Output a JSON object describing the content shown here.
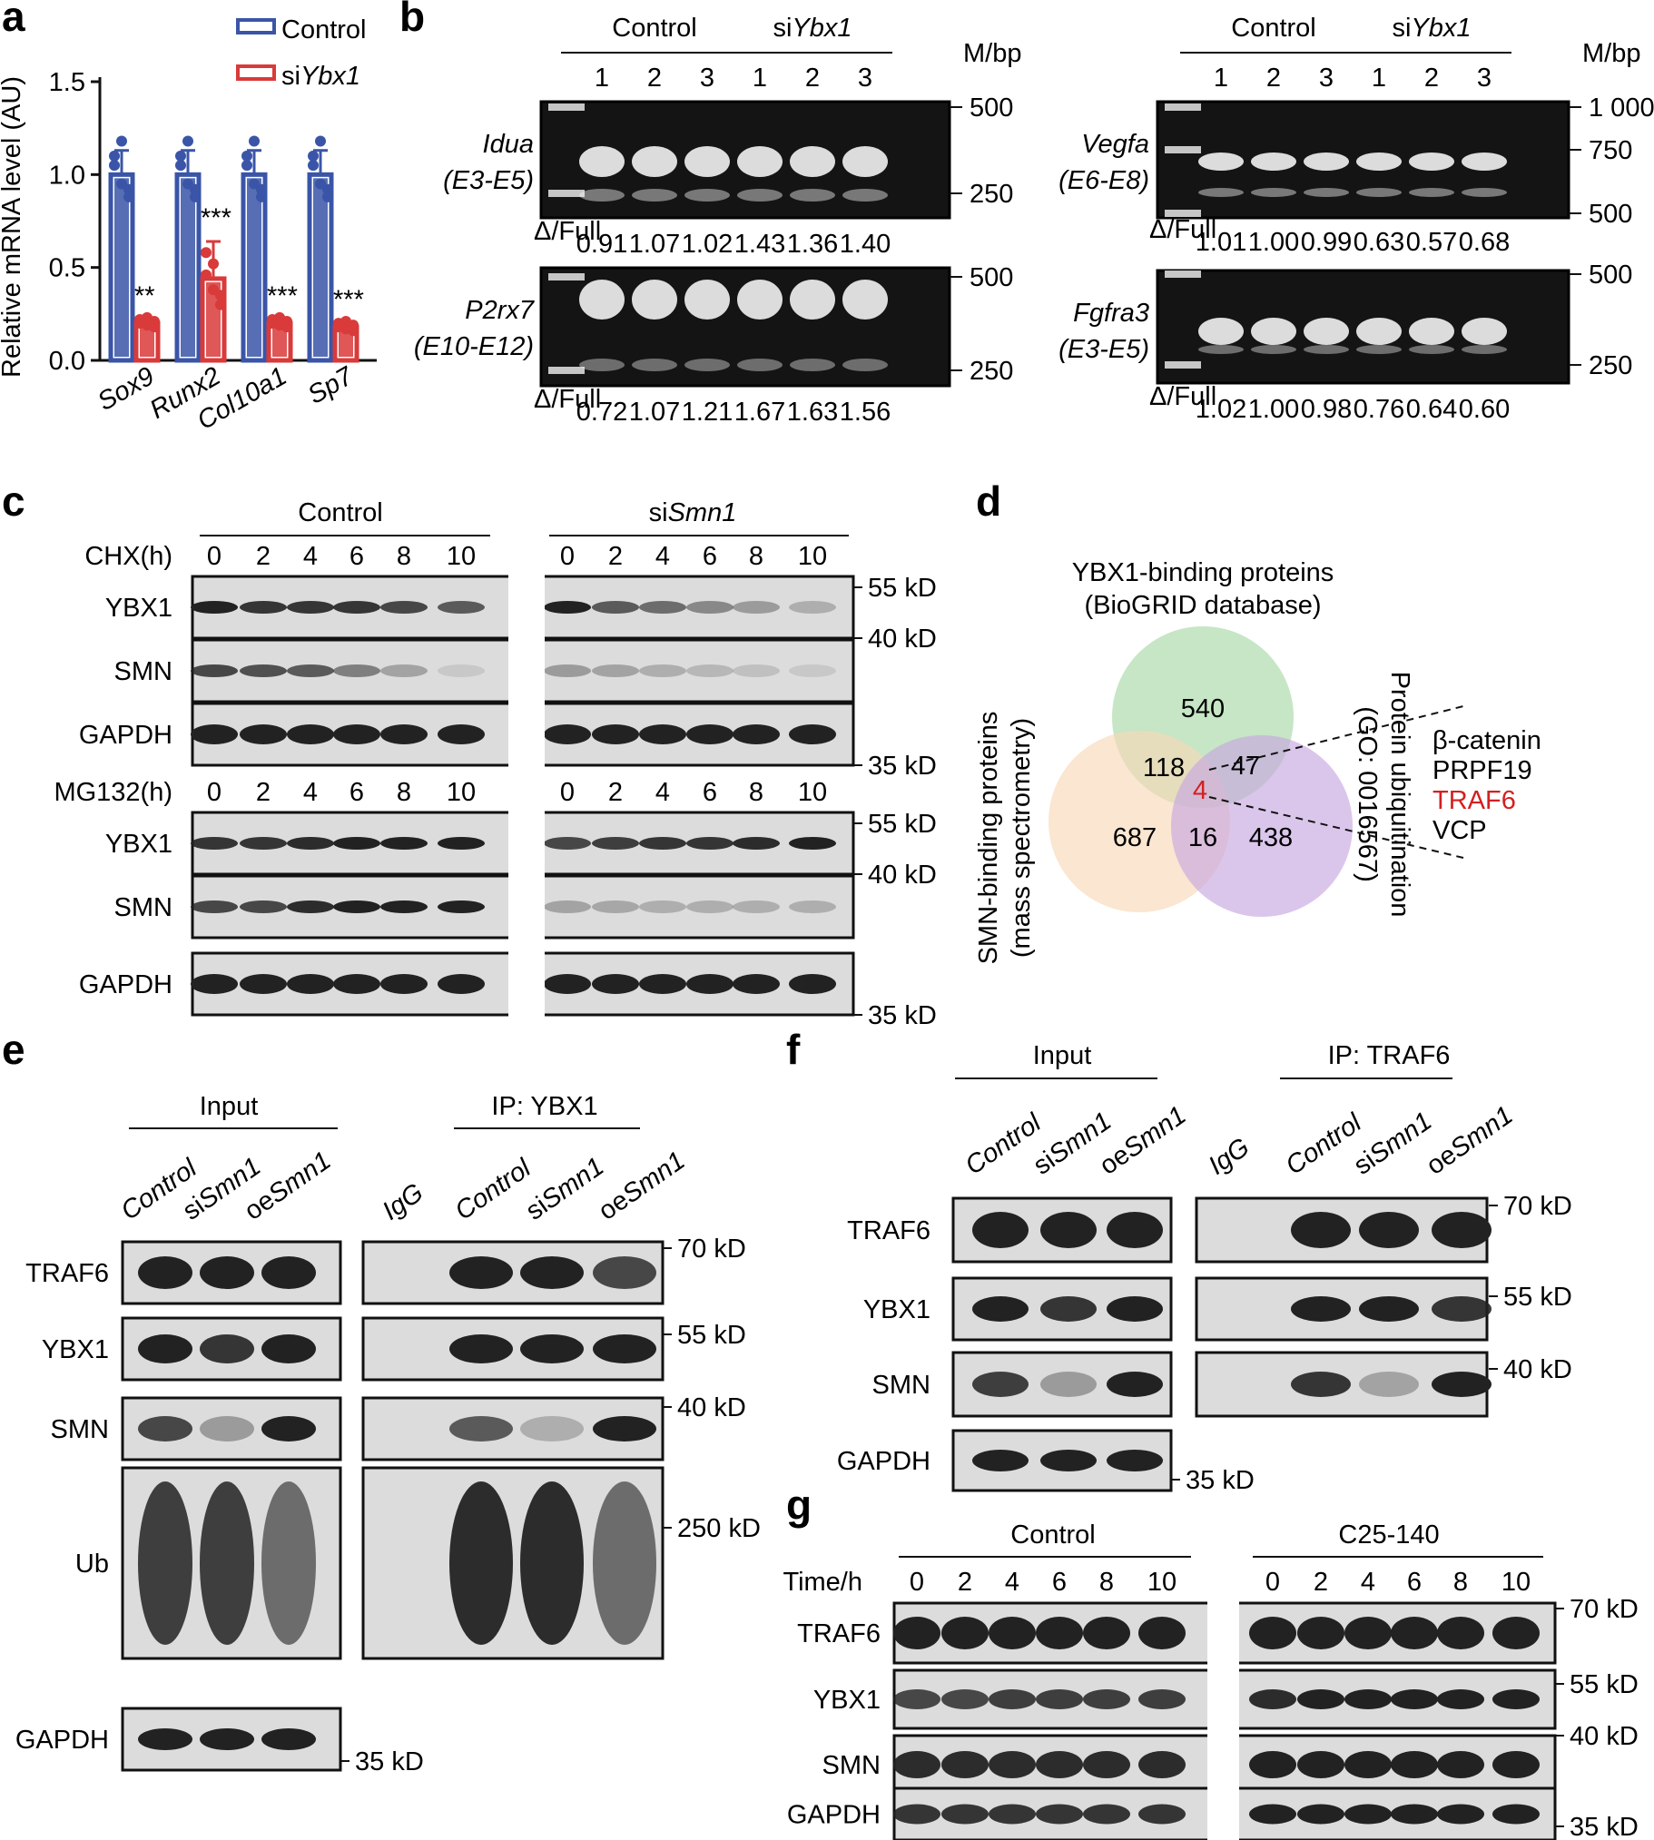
{
  "panels": {
    "a": "a",
    "b": "b",
    "c": "c",
    "d": "d",
    "e": "e",
    "f": "f",
    "g": "g"
  },
  "colors": {
    "control": "#3a55a8",
    "si": "#d93a3a",
    "band": "#222222",
    "gel_band": "#f2f2f2",
    "venn_green": "#a8d8a8",
    "venn_orange": "#f8d8b8",
    "venn_purple": "#c8a8e0",
    "highlight": "#d32020"
  },
  "panel_a": {
    "legend": {
      "control": "Control",
      "si_prefix": "si",
      "si_gene": "Ybx1"
    },
    "ylabel": "Relative mRNA level (AU)",
    "yticks": [
      "0.0",
      "0.5",
      "1.0",
      "1.5"
    ],
    "significance": [
      "**",
      "***",
      "***",
      "***"
    ],
    "chart_data": {
      "type": "bar",
      "categories": [
        "Sox9",
        "Runx2",
        "Col10a1",
        "Sp7"
      ],
      "series": [
        {
          "name": "Control",
          "values": [
            1.0,
            1.0,
            1.0,
            1.0
          ]
        },
        {
          "name": "siYbx1",
          "values": [
            0.2,
            0.44,
            0.2,
            0.18
          ]
        }
      ],
      "ylabel": "Relative mRNA level (AU)",
      "ylim": [
        0,
        1.5
      ]
    }
  },
  "panel_b": {
    "groups": {
      "control": "Control",
      "si_prefix": "si",
      "si_gene": "Ybx1"
    },
    "lanes": [
      "1",
      "2",
      "3",
      "1",
      "2",
      "3"
    ],
    "mbp": "M/bp",
    "ratio_label": "Δ/Full",
    "gels": [
      {
        "gene": "Idua",
        "exon": "(E3-E5)",
        "markers": [
          "500",
          "250"
        ],
        "ratios": [
          "0.91",
          "1.07",
          "1.02",
          "1.43",
          "1.36",
          "1.40"
        ]
      },
      {
        "gene": "P2rx7",
        "exon": "(E10-E12)",
        "markers": [
          "500",
          "250"
        ],
        "ratios": [
          "0.72",
          "1.07",
          "1.21",
          "1.67",
          "1.63",
          "1.56"
        ]
      },
      {
        "gene": "Vegfa",
        "exon": "(E6-E8)",
        "markers": [
          "1 000",
          "750",
          "500"
        ],
        "ratios": [
          "1.01",
          "1.00",
          "0.99",
          "0.63",
          "0.57",
          "0.68"
        ]
      },
      {
        "gene": "Fgfra3",
        "exon": "(E3-E5)",
        "markers": [
          "500",
          "250"
        ],
        "ratios": [
          "1.02",
          "1.00",
          "0.98",
          "0.76",
          "0.64",
          "0.60"
        ]
      }
    ]
  },
  "panel_c": {
    "groups": {
      "control": "Control",
      "si_prefix": "si",
      "si_gene": "Smn1"
    },
    "chx_label": "CHX(h)",
    "mg_label": "MG132(h)",
    "times": [
      "0",
      "2",
      "4",
      "6",
      "8",
      "10",
      "0",
      "2",
      "4",
      "6",
      "8",
      "10"
    ],
    "rows": [
      "YBX1",
      "SMN",
      "GAPDH"
    ],
    "mw": [
      "55 kD",
      "40 kD",
      "35 kD"
    ]
  },
  "panel_d": {
    "top_title_1": "YBX1-binding proteins",
    "top_title_2": "(BioGRID database)",
    "left_title_1": "SMN-binding proteins",
    "left_title_2": "(mass spectrometry)",
    "right_title_1": "Protein ubiquitination",
    "right_title_2": "(GO: 0016567)",
    "counts": {
      "green": "540",
      "orange": "687",
      "purple": "438",
      "green_orange": "118",
      "green_purple": "47",
      "orange_purple": "16",
      "center": "4"
    },
    "proteins": [
      "β-catenin",
      "PRPF19",
      "TRAF6",
      "VCP"
    ]
  },
  "panel_e": {
    "input": "Input",
    "ip": "IP: YBX1",
    "input_lanes": [
      {
        "prefix": "",
        "gene": "Control"
      },
      {
        "prefix": "si",
        "gene": "Smn1"
      },
      {
        "prefix": "oe",
        "gene": "Smn1"
      }
    ],
    "ip_lanes": [
      {
        "prefix": "",
        "gene": "IgG"
      },
      {
        "prefix": "",
        "gene": "Control"
      },
      {
        "prefix": "si",
        "gene": "Smn1"
      },
      {
        "prefix": "oe",
        "gene": "Smn1"
      }
    ],
    "rows": [
      "TRAF6",
      "YBX1",
      "SMN",
      "Ub",
      "GAPDH"
    ],
    "mw": [
      "70 kD",
      "55 kD",
      "40 kD",
      "250 kD",
      "35 kD"
    ]
  },
  "panel_f": {
    "input": "Input",
    "ip": "IP: TRAF6",
    "rows": [
      "TRAF6",
      "YBX1",
      "SMN",
      "GAPDH"
    ],
    "mw": [
      "70 kD",
      "55 kD",
      "40 kD",
      "35 kD"
    ]
  },
  "panel_g": {
    "control": "Control",
    "treatment": "C25-140",
    "time_label": "Time/h",
    "times": [
      "0",
      "2",
      "4",
      "6",
      "8",
      "10",
      "0",
      "2",
      "4",
      "6",
      "8",
      "10"
    ],
    "rows": [
      "TRAF6",
      "YBX1",
      "SMN",
      "GAPDH"
    ],
    "mw": [
      "70 kD",
      "55 kD",
      "40 kD",
      "35 kD"
    ]
  }
}
